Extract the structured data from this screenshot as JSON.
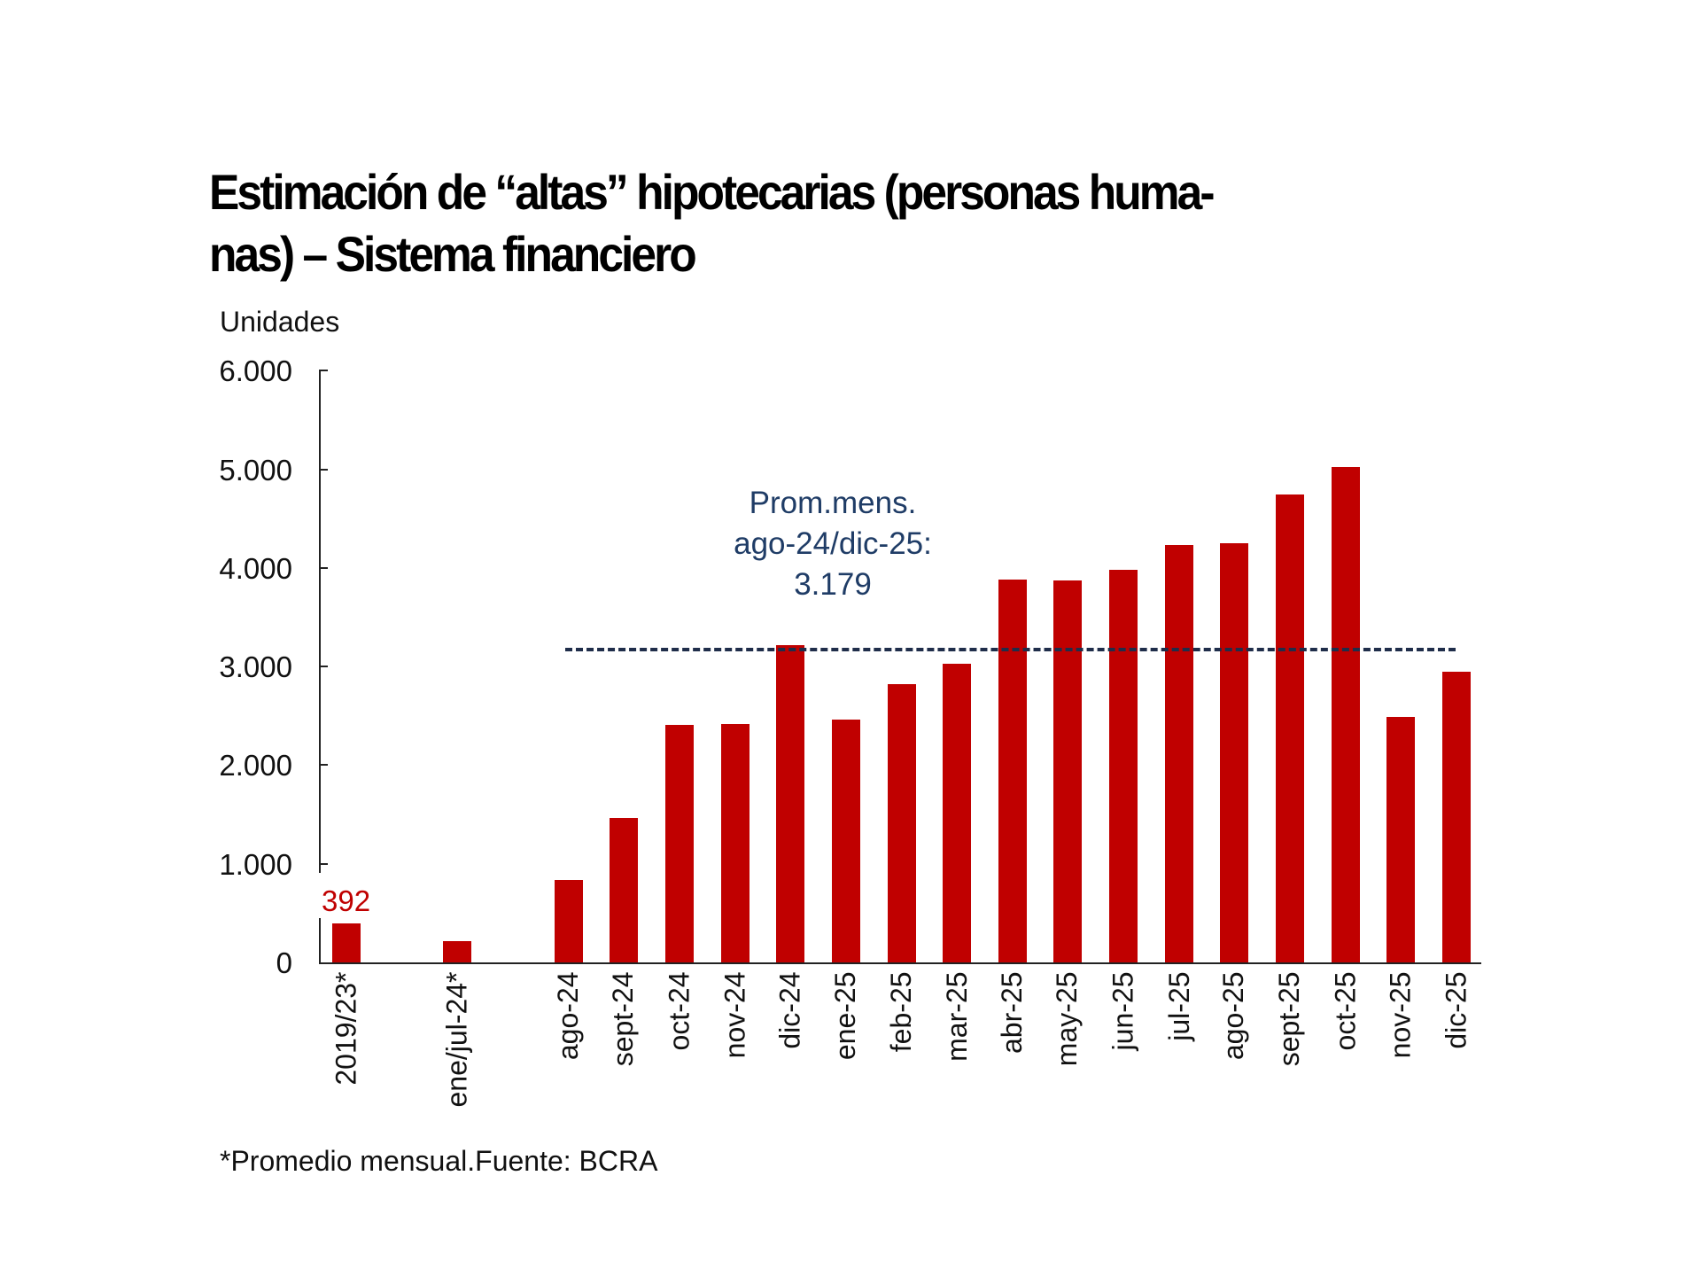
{
  "title": "Estimación de “altas” hipotecarias (personas huma-nas) – Sistema financiero",
  "title_lines": [
    "Estimación de “altas” hipotecarias (personas huma-",
    "nas) – Sistema financiero"
  ],
  "y_unit": "Unidades",
  "y_ticks": [
    "6.000",
    "5.000",
    "4.000",
    "3.000",
    "2.000",
    "1.000",
    "0"
  ],
  "bar_value_label": "392",
  "annotation": {
    "line1": "Prom.mens.",
    "line2": "ago-24/dic-25:",
    "line3": "3.179"
  },
  "footnote": "*Promedio mensual.Fuente: BCRA",
  "colors": {
    "bar": "#c00000",
    "reference_line": "#1f2d4a",
    "annotation_text": "#1f3c66",
    "value_label": "#c00000"
  },
  "chart_data": {
    "type": "bar",
    "title": "Estimación de “altas” hipotecarias (personas humanas) – Sistema financiero",
    "xlabel": "",
    "ylabel": "Unidades",
    "ylim": [
      0,
      6000
    ],
    "yticks": [
      0,
      1000,
      2000,
      3000,
      4000,
      5000,
      6000
    ],
    "grid": false,
    "legend": null,
    "categories": [
      "2019/23*",
      "ene/jul-24*",
      "ago-24",
      "sept-24",
      "oct-24",
      "nov-24",
      "dic-24",
      "ene-25",
      "feb-25",
      "mar-25",
      "abr-25",
      "may-25",
      "jun-25",
      "jul-25",
      "ago-25",
      "sept-25",
      "oct-25",
      "nov-25",
      "dic-25"
    ],
    "values": [
      392,
      220,
      835,
      1465,
      2410,
      2420,
      3215,
      2460,
      2820,
      3030,
      3880,
      3870,
      3980,
      4230,
      4250,
      4745,
      5020,
      2490,
      2945
    ],
    "data_labels": [
      {
        "category": "2019/23*",
        "text": "392"
      }
    ],
    "reference_lines": [
      {
        "type": "horizontal",
        "value": 3179,
        "style": "dashed",
        "from": "ago-24",
        "to": "dic-25",
        "label": "Prom.mens. ago-24/dic-25: 3.179"
      }
    ],
    "notes": "*Promedio mensual.Fuente: BCRA"
  }
}
